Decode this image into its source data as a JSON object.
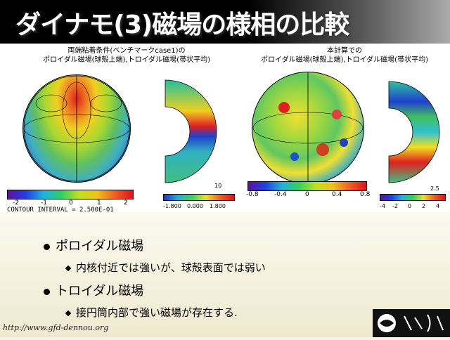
{
  "title": "ダイナモ(3)磁場の様相の比較",
  "left_caption": {
    "line1": "両端粘着条件(ベンチマークcase1)の",
    "line2": "ポロイダル磁場(球殻上端),トロイダル磁場(帯状平均)"
  },
  "right_caption": {
    "line1": "本計算での",
    "line2": "ポロイダル磁場(球殻上端),トロイダル磁場(帯状平均)"
  },
  "left_colorbar": {
    "ticks": [
      "-2",
      "-1",
      "0",
      "1",
      "2"
    ],
    "contour": "CONTOUR INTERVAL = 2.500E-01"
  },
  "left_toroidal_colorbar": {
    "ticks": [
      "-1.800",
      "0.000",
      "1.800"
    ],
    "scale": "10"
  },
  "right_colorbar": {
    "ticks": [
      "-0.8",
      "-0.4",
      "0",
      "0.4",
      "0.8"
    ]
  },
  "right_toroidal_colorbar": {
    "ticks": [
      "-4",
      "-2",
      "0",
      "2",
      "4"
    ],
    "scale": "2.5"
  },
  "bullets": [
    {
      "label": "ポロイダル磁場",
      "sub": "内核付近では強いが、球殻表面では弱い"
    },
    {
      "label": "トロイダル磁場",
      "sub": "接円筒内部で強い磁場が存在する."
    }
  ],
  "url": "http://www.gfd-dennou.org",
  "colors": {
    "title_bg": "#000000",
    "title_text": "#ffffff",
    "bottom_bg": "#f2eed8"
  }
}
